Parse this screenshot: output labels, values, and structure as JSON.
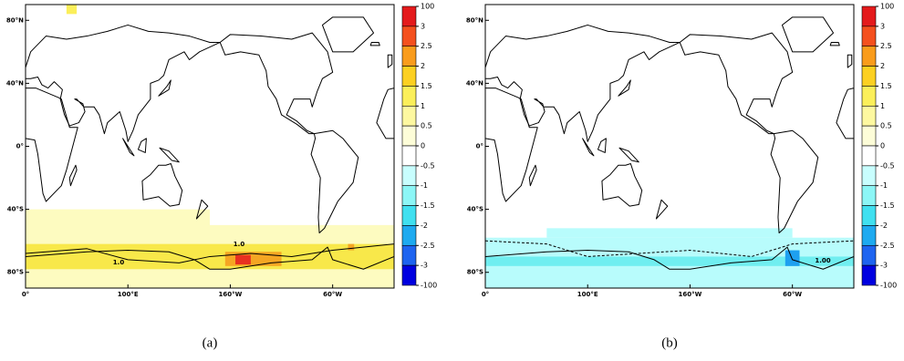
{
  "panels": [
    {
      "caption": "(a)",
      "lat_ticks": [
        {
          "value": 80,
          "label": "80°N"
        },
        {
          "value": 40,
          "label": "40°N"
        },
        {
          "value": 0,
          "label": "0°"
        },
        {
          "value": -40,
          "label": "40°S"
        },
        {
          "value": -80,
          "label": "80°S"
        }
      ],
      "lon_ticks": [
        {
          "value": 0,
          "label": "0°"
        },
        {
          "value": 100,
          "label": "100°E"
        },
        {
          "value": 200,
          "label": "160°W"
        },
        {
          "value": 300,
          "label": "60°W"
        }
      ],
      "contour_labels": [
        "1.0",
        "1.0"
      ],
      "colorbar": {
        "ticks": [
          100,
          3,
          2.5,
          2,
          1.5,
          1,
          0.5,
          0,
          -0.5,
          -1,
          -1.5,
          -2,
          -2.5,
          -3,
          -100
        ],
        "colors": [
          "#e41a1c",
          "#f4501e",
          "#f99c1c",
          "#fcd022",
          "#fbef5a",
          "#fdf8a0",
          "#fdfdd8",
          "#ffffff",
          "#c8fefe",
          "#8cf6f6",
          "#40e0f0",
          "#1eaaf0",
          "#1e64f0",
          "#0000e0"
        ]
      }
    },
    {
      "caption": "(b)",
      "lat_ticks": [
        {
          "value": 80,
          "label": "80°N"
        },
        {
          "value": 40,
          "label": "40°N"
        },
        {
          "value": 0,
          "label": "0°"
        },
        {
          "value": -40,
          "label": "40°S"
        },
        {
          "value": -80,
          "label": "80°S"
        }
      ],
      "lon_ticks": [
        {
          "value": 0,
          "label": "0°"
        },
        {
          "value": 100,
          "label": "100°E"
        },
        {
          "value": 200,
          "label": "160°W"
        },
        {
          "value": 300,
          "label": "60°W"
        }
      ],
      "contour_labels": [
        "1.00"
      ],
      "colorbar": {
        "ticks": [
          100,
          3,
          2.5,
          2,
          1.5,
          1,
          0.5,
          0,
          -0.5,
          -1,
          -1.5,
          -2,
          -2.5,
          -3,
          -100
        ],
        "colors": [
          "#e41a1c",
          "#f4501e",
          "#f99c1c",
          "#fcd022",
          "#fbef5a",
          "#fdf8a0",
          "#fdfdd8",
          "#ffffff",
          "#c8fefe",
          "#8cf6f6",
          "#40e0f0",
          "#1eaaf0",
          "#1e64f0",
          "#0000e0"
        ]
      }
    }
  ]
}
